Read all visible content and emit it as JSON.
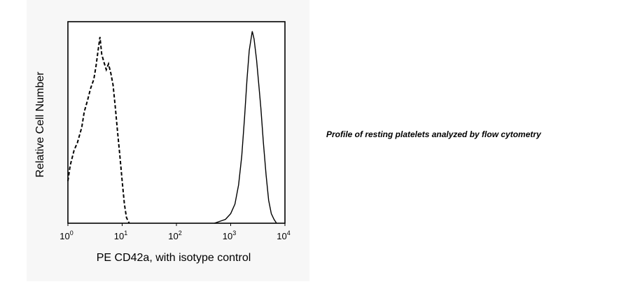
{
  "caption": "Profile of resting platelets analyzed by flow cytometry",
  "chart_data": {
    "type": "line",
    "title": "",
    "xlabel": "PE CD42a, with isotype control",
    "ylabel": "Relative Cell Number",
    "xscale": "log",
    "xlim": [
      1,
      10000
    ],
    "ylim": [
      0,
      1.05
    ],
    "grid": false,
    "legend": "none",
    "x_ticks": [
      {
        "base": "10",
        "exp": "0"
      },
      {
        "base": "10",
        "exp": "1"
      },
      {
        "base": "10",
        "exp": "2"
      },
      {
        "base": "10",
        "exp": "3"
      },
      {
        "base": "10",
        "exp": "4"
      }
    ],
    "series": [
      {
        "style": "dashed",
        "color": "#000000",
        "points": [
          [
            1.0,
            0.22
          ],
          [
            1.1,
            0.3
          ],
          [
            1.3,
            0.38
          ],
          [
            1.5,
            0.42
          ],
          [
            1.8,
            0.5
          ],
          [
            2.0,
            0.58
          ],
          [
            2.3,
            0.64
          ],
          [
            2.6,
            0.7
          ],
          [
            3.0,
            0.75
          ],
          [
            3.3,
            0.82
          ],
          [
            3.6,
            0.9
          ],
          [
            3.9,
            0.97
          ],
          [
            4.2,
            0.88
          ],
          [
            4.6,
            0.84
          ],
          [
            5.1,
            0.8
          ],
          [
            5.6,
            0.83
          ],
          [
            6.2,
            0.78
          ],
          [
            6.8,
            0.72
          ],
          [
            7.5,
            0.6
          ],
          [
            8.2,
            0.48
          ],
          [
            9.0,
            0.36
          ],
          [
            10.0,
            0.22
          ],
          [
            11.0,
            0.1
          ],
          [
            12.0,
            0.03
          ],
          [
            13.5,
            0.0
          ]
        ]
      },
      {
        "style": "solid",
        "color": "#000000",
        "points": [
          [
            500,
            0.0
          ],
          [
            800,
            0.02
          ],
          [
            1000,
            0.05
          ],
          [
            1200,
            0.1
          ],
          [
            1400,
            0.2
          ],
          [
            1600,
            0.35
          ],
          [
            1800,
            0.55
          ],
          [
            2000,
            0.75
          ],
          [
            2200,
            0.9
          ],
          [
            2500,
            1.0
          ],
          [
            2700,
            0.96
          ],
          [
            3000,
            0.85
          ],
          [
            3300,
            0.72
          ],
          [
            3600,
            0.6
          ],
          [
            4000,
            0.42
          ],
          [
            4500,
            0.25
          ],
          [
            5000,
            0.12
          ],
          [
            5600,
            0.05
          ],
          [
            6300,
            0.02
          ],
          [
            7000,
            0.0
          ]
        ]
      }
    ]
  }
}
